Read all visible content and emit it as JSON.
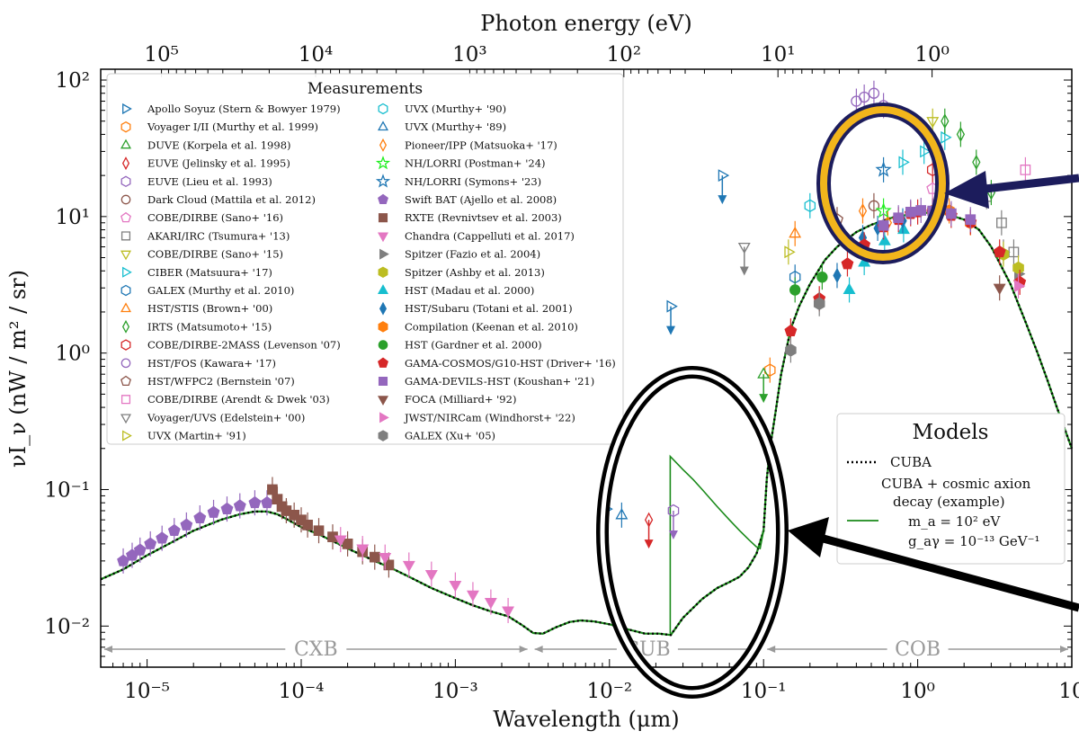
{
  "chart_data": {
    "type": "scatter",
    "xlabel": "Wavelength (μm)",
    "x2label": "Photon energy (eV)",
    "ylabel": "νI_ν (nW / m² / sr)",
    "xscale": "log",
    "yscale": "log",
    "xlim": [
      5e-06,
      10
    ],
    "ylim": [
      0.005,
      120
    ],
    "xticks": [
      {
        "value": 1e-05,
        "label": "10⁻⁵"
      },
      {
        "value": 0.0001,
        "label": "10⁻⁴"
      },
      {
        "value": 0.001,
        "label": "10⁻³"
      },
      {
        "value": 0.01,
        "label": "10⁻²"
      },
      {
        "value": 0.1,
        "label": "10⁻¹"
      },
      {
        "value": 1,
        "label": "10⁰"
      },
      {
        "value": 10,
        "label": "10"
      }
    ],
    "yticks": [
      {
        "value": 0.01,
        "label": "10⁻²"
      },
      {
        "value": 0.1,
        "label": "10⁻¹"
      },
      {
        "value": 1,
        "label": "10⁰"
      },
      {
        "value": 10,
        "label": "10¹"
      },
      {
        "value": 100,
        "label": "10²"
      }
    ],
    "x2ticks": [
      {
        "value": 100000,
        "label": "10⁵"
      },
      {
        "value": 10000,
        "label": "10⁴"
      },
      {
        "value": 1000,
        "label": "10³"
      },
      {
        "value": 100,
        "label": "10²"
      },
      {
        "value": 10,
        "label": "10¹"
      },
      {
        "value": 1,
        "label": "10⁰"
      }
    ],
    "regions": [
      {
        "label": "CXB",
        "from": 5e-06,
        "to": 0.0031
      },
      {
        "label": "CUB",
        "from": 0.0031,
        "to": 0.1
      },
      {
        "label": "COB",
        "from": 0.1,
        "to": 10
      }
    ],
    "measurements_title": "Measurements",
    "measurements": [
      {
        "label": "Apollo Soyuz (Stern & Bowyer 1979)",
        "marker": "tri-right-open",
        "color": "#1f77b4",
        "points": [
          {
            "x": 0.0095,
            "y": 0.072
          },
          {
            "x": 0.054,
            "y": 20,
            "limit": "upper"
          },
          {
            "x": 0.025,
            "y": 2.2,
            "limit": "upper"
          }
        ]
      },
      {
        "label": "Voyager I/II (Murthy et al. 1999)",
        "marker": "hex-open",
        "color": "#ff7f0e",
        "points": [
          {
            "x": 0.11,
            "y": 0.75
          }
        ]
      },
      {
        "label": "DUVE (Korpela et al. 1998)",
        "marker": "tri-up-open",
        "color": "#2ca02c",
        "points": [
          {
            "x": 0.1,
            "y": 0.7,
            "limit": "upper"
          }
        ]
      },
      {
        "label": "EUVE (Jelinsky et al. 1995)",
        "marker": "diamond-open",
        "color": "#d62728",
        "points": [
          {
            "x": 0.018,
            "y": 0.06,
            "limit": "upper"
          }
        ]
      },
      {
        "label": "EUVE (Lieu et al. 1993)",
        "marker": "hex-open",
        "color": "#9467bd",
        "points": [
          {
            "x": 0.026,
            "y": 0.07,
            "limit": "upper"
          }
        ]
      },
      {
        "label": "Dark Cloud (Mattila et al. 2012)",
        "marker": "circle-open",
        "color": "#8c564b",
        "points": [
          {
            "x": 0.52,
            "y": 12
          }
        ]
      },
      {
        "label": "COBE/DIRBE (Sano+ '16)",
        "marker": "pent-open",
        "color": "#e377c2",
        "points": [
          {
            "x": 1.25,
            "y": 16
          }
        ]
      },
      {
        "label": "AKARI/IRC (Tsumura+ '13)",
        "marker": "square-open",
        "color": "#7f7f7f",
        "points": [
          {
            "x": 2.8,
            "y": 14
          },
          {
            "x": 3.5,
            "y": 9
          },
          {
            "x": 4.2,
            "y": 5.5
          }
        ]
      },
      {
        "label": "COBE/DIRBE (Sano+ '15)",
        "marker": "tri-down-open",
        "color": "#bcbd22",
        "points": [
          {
            "x": 1.25,
            "y": 50
          }
        ]
      },
      {
        "label": "CIBER (Matsuura+ '17)",
        "marker": "tri-right-open",
        "color": "#17becf",
        "points": [
          {
            "x": 0.8,
            "y": 25
          },
          {
            "x": 1.1,
            "y": 30
          },
          {
            "x": 1.5,
            "y": 38
          }
        ]
      },
      {
        "label": "GALEX (Murthy et al. 2010)",
        "marker": "hex-open",
        "color": "#1f77b4",
        "points": [
          {
            "x": 0.16,
            "y": 3.6
          }
        ]
      },
      {
        "label": "HST/STIS (Brown+ '00)",
        "marker": "tri-up-open",
        "color": "#ff7f0e",
        "points": [
          {
            "x": 0.16,
            "y": 7.5
          }
        ]
      },
      {
        "label": "IRTS (Matsumoto+ '15)",
        "marker": "diamond-open",
        "color": "#2ca02c",
        "points": [
          {
            "x": 1.5,
            "y": 50
          },
          {
            "x": 1.9,
            "y": 40
          },
          {
            "x": 2.4,
            "y": 25
          },
          {
            "x": 3.0,
            "y": 15
          }
        ]
      },
      {
        "label": "COBE/DIRBE-2MASS (Levenson '07)",
        "marker": "hex-open",
        "color": "#d62728",
        "points": [
          {
            "x": 1.25,
            "y": 22
          }
        ]
      },
      {
        "label": "HST/FOS (Kawara+ '17)",
        "marker": "circle-open",
        "color": "#9467bd",
        "points": [
          {
            "x": 0.4,
            "y": 70
          },
          {
            "x": 0.45,
            "y": 75
          },
          {
            "x": 0.52,
            "y": 80
          },
          {
            "x": 0.6,
            "y": 65
          }
        ]
      },
      {
        "label": "HST/WFPC2 (Bernstein '07)",
        "marker": "pent-open",
        "color": "#8c564b",
        "points": [
          {
            "x": 0.3,
            "y": 9.5
          }
        ]
      },
      {
        "label": "COBE/DIRBE (Arendt & Dwek '03)",
        "marker": "square-open",
        "color": "#e377c2",
        "points": [
          {
            "x": 5.0,
            "y": 22
          }
        ]
      },
      {
        "label": "Voyager/UVS (Edelstein+ '00)",
        "marker": "tri-down-open",
        "color": "#7f7f7f",
        "points": [
          {
            "x": 0.075,
            "y": 6,
            "limit": "upper"
          }
        ]
      },
      {
        "label": "UVX (Martin+ '91)",
        "marker": "tri-right-open",
        "color": "#bcbd22",
        "points": [
          {
            "x": 0.145,
            "y": 5.5
          }
        ]
      },
      {
        "label": "UVX (Murthy+ '90)",
        "marker": "hex-open",
        "color": "#17becf",
        "points": [
          {
            "x": 0.2,
            "y": 12
          }
        ]
      },
      {
        "label": "UVX (Murthy+ '89)",
        "marker": "tri-up-open",
        "color": "#1f77b4",
        "points": [
          {
            "x": 0.012,
            "y": 0.065
          }
        ]
      },
      {
        "label": "Pioneer/IPP (Matsuoka+ '17)",
        "marker": "diamond-open",
        "color": "#ff7f0e",
        "points": [
          {
            "x": 0.44,
            "y": 11
          },
          {
            "x": 0.64,
            "y": 9
          }
        ]
      },
      {
        "label": "NH/LORRI (Postman+ '24)",
        "marker": "star-open",
        "color": "#22ee22",
        "points": [
          {
            "x": 0.6,
            "y": 11
          }
        ]
      },
      {
        "label": "NH/LORRI (Symons+ '23)",
        "marker": "star-open",
        "color": "#1f77b4",
        "points": [
          {
            "x": 0.6,
            "y": 22
          }
        ]
      },
      {
        "label": "Swift BAT (Ajello et al. 2008)",
        "marker": "pent-filled",
        "color": "#9467bd",
        "points": [
          {
            "x": 7e-06,
            "y": 0.03
          },
          {
            "x": 8e-06,
            "y": 0.033
          },
          {
            "x": 9e-06,
            "y": 0.036
          },
          {
            "x": 1.05e-05,
            "y": 0.04
          },
          {
            "x": 1.25e-05,
            "y": 0.044
          },
          {
            "x": 1.5e-05,
            "y": 0.05
          },
          {
            "x": 1.8e-05,
            "y": 0.055
          },
          {
            "x": 2.2e-05,
            "y": 0.062
          },
          {
            "x": 2.7e-05,
            "y": 0.068
          },
          {
            "x": 3.3e-05,
            "y": 0.072
          },
          {
            "x": 4e-05,
            "y": 0.076
          },
          {
            "x": 5e-05,
            "y": 0.08
          },
          {
            "x": 6e-05,
            "y": 0.08
          }
        ]
      },
      {
        "label": "RXTE (Revnivtsev et al. 2003)",
        "marker": "square-filled",
        "color": "#8c564b",
        "points": [
          {
            "x": 6.5e-05,
            "y": 0.1
          },
          {
            "x": 7e-05,
            "y": 0.085
          },
          {
            "x": 7.5e-05,
            "y": 0.075
          },
          {
            "x": 8e-05,
            "y": 0.07
          },
          {
            "x": 9e-05,
            "y": 0.065
          },
          {
            "x": 0.0001,
            "y": 0.06
          },
          {
            "x": 0.00011,
            "y": 0.055
          },
          {
            "x": 0.00013,
            "y": 0.05
          },
          {
            "x": 0.00016,
            "y": 0.045
          },
          {
            "x": 0.0002,
            "y": 0.04
          },
          {
            "x": 0.00025,
            "y": 0.035
          },
          {
            "x": 0.0003,
            "y": 0.032
          },
          {
            "x": 0.00037,
            "y": 0.028
          }
        ]
      },
      {
        "label": "Chandra (Cappelluti et al. 2017)",
        "marker": "tri-down-filled",
        "color": "#e377c2",
        "points": [
          {
            "x": 0.00018,
            "y": 0.043
          },
          {
            "x": 0.00025,
            "y": 0.037
          },
          {
            "x": 0.00035,
            "y": 0.032
          },
          {
            "x": 0.0005,
            "y": 0.028
          },
          {
            "x": 0.0007,
            "y": 0.024
          },
          {
            "x": 0.001,
            "y": 0.02
          },
          {
            "x": 0.0013,
            "y": 0.017
          },
          {
            "x": 0.0017,
            "y": 0.015
          },
          {
            "x": 0.0022,
            "y": 0.013
          }
        ]
      },
      {
        "label": "Spitzer (Fazio et al. 2004)",
        "marker": "tri-right-filled",
        "color": "#7f7f7f",
        "points": [
          {
            "x": 3.6,
            "y": 5.5
          },
          {
            "x": 4.5,
            "y": 3.8
          }
        ]
      },
      {
        "label": "Spitzer (Ashby et al. 2013)",
        "marker": "hex-filled",
        "color": "#bcbd22",
        "points": [
          {
            "x": 3.6,
            "y": 5.3
          },
          {
            "x": 4.5,
            "y": 4.2
          }
        ]
      },
      {
        "label": "HST (Madau et al. 2000)",
        "marker": "tri-up-filled",
        "color": "#17becf",
        "points": [
          {
            "x": 0.36,
            "y": 2.9
          },
          {
            "x": 0.45,
            "y": 4.6
          },
          {
            "x": 0.61,
            "y": 6.6
          },
          {
            "x": 0.81,
            "y": 8.0
          }
        ]
      },
      {
        "label": "HST/Subaru (Totani et al. 2001)",
        "marker": "diamond-filled",
        "color": "#1f77b4",
        "points": [
          {
            "x": 0.3,
            "y": 3.7
          },
          {
            "x": 0.44,
            "y": 7.0
          },
          {
            "x": 0.55,
            "y": 8.2
          },
          {
            "x": 0.8,
            "y": 9.3
          }
        ]
      },
      {
        "label": "Compilation (Keenan et al. 2010)",
        "marker": "hex-filled",
        "color": "#ff7f0e",
        "points": [
          {
            "x": 1.25,
            "y": 11
          },
          {
            "x": 1.6,
            "y": 11
          },
          {
            "x": 2.2,
            "y": 9
          }
        ]
      },
      {
        "label": "HST (Gardner et al. 2000)",
        "marker": "circle-filled",
        "color": "#2ca02c",
        "points": [
          {
            "x": 0.16,
            "y": 2.9
          },
          {
            "x": 0.24,
            "y": 3.6
          }
        ]
      },
      {
        "label": "GAMA-COSMOS/G10-HST (Driver+ '16)",
        "marker": "pent-filled",
        "color": "#d62728",
        "points": [
          {
            "x": 0.15,
            "y": 1.45
          },
          {
            "x": 0.23,
            "y": 2.5
          },
          {
            "x": 0.35,
            "y": 4.5
          },
          {
            "x": 0.45,
            "y": 6.2
          },
          {
            "x": 0.6,
            "y": 8.4
          },
          {
            "x": 0.75,
            "y": 9.5
          },
          {
            "x": 0.9,
            "y": 10.5
          },
          {
            "x": 1.0,
            "y": 10.8
          },
          {
            "x": 1.25,
            "y": 10.8
          },
          {
            "x": 1.65,
            "y": 10.2
          },
          {
            "x": 2.2,
            "y": 9.1
          },
          {
            "x": 3.4,
            "y": 5.5
          },
          {
            "x": 4.6,
            "y": 3.3
          }
        ]
      },
      {
        "label": "GAMA-DEVILS-HST (Koushan+ '21)",
        "marker": "square-filled",
        "color": "#9467bd",
        "points": [
          {
            "x": 0.6,
            "y": 8.6
          },
          {
            "x": 0.75,
            "y": 9.8
          },
          {
            "x": 0.9,
            "y": 10.8
          },
          {
            "x": 1.05,
            "y": 11.1
          },
          {
            "x": 1.25,
            "y": 11.0
          },
          {
            "x": 1.65,
            "y": 10.5
          },
          {
            "x": 2.2,
            "y": 9.5
          }
        ]
      },
      {
        "label": "FOCA (Milliard+ '92)",
        "marker": "tri-down-filled",
        "color": "#8c564b",
        "points": [
          {
            "x": 3.4,
            "y": 3.0
          }
        ]
      },
      {
        "label": "JWST/NIRCam (Windhorst+ '22)",
        "marker": "tri-right-filled",
        "color": "#e377c2",
        "points": [
          {
            "x": 4.5,
            "y": 3.1
          }
        ]
      },
      {
        "label": "GALEX (Xu+ '05)",
        "marker": "hex-filled",
        "color": "#7f7f7f",
        "points": [
          {
            "x": 0.15,
            "y": 1.05
          },
          {
            "x": 0.23,
            "y": 2.3
          }
        ]
      }
    ],
    "models_title": "Models",
    "models": [
      {
        "name": "CUBA",
        "style": "dotted",
        "color": "#000000",
        "label_lines": [
          "CUBA"
        ]
      },
      {
        "name": "CUBA + cosmic axion decay (example)",
        "style": "solid",
        "color": "#1a8a1a",
        "label_lines": [
          "CUBA + cosmic axion",
          "decay (example)",
          "m_a = 10² eV",
          "g_aγ = 10⁻¹³ GeV⁻¹"
        ]
      }
    ],
    "cuba_curve": {
      "x": [
        5e-06,
        7e-06,
        1e-05,
        1.5e-05,
        2e-05,
        3e-05,
        4e-05,
        5e-05,
        6e-05,
        7e-05,
        8e-05,
        0.0001,
        0.00013,
        0.00016,
        0.0002,
        0.00025,
        0.0003,
        0.0004,
        0.0005,
        0.0007,
        0.001,
        0.0013,
        0.0017,
        0.0022,
        0.0027,
        0.0032,
        0.0037,
        0.0045,
        0.0055,
        0.0065,
        0.008,
        0.01,
        0.013,
        0.017,
        0.021,
        0.025,
        0.03,
        0.04,
        0.05,
        0.06,
        0.07,
        0.08,
        0.09,
        0.1,
        0.105,
        0.11,
        0.12,
        0.13,
        0.15,
        0.17,
        0.2,
        0.25,
        0.3,
        0.4,
        0.5,
        0.7,
        1.0,
        1.3,
        1.6,
        2.0,
        2.5,
        3.0,
        4.0,
        5.0,
        6.0,
        7.0,
        8.0,
        10.0
      ],
      "y": [
        0.022,
        0.026,
        0.033,
        0.042,
        0.05,
        0.06,
        0.066,
        0.069,
        0.069,
        0.066,
        0.061,
        0.053,
        0.047,
        0.042,
        0.037,
        0.033,
        0.03,
        0.026,
        0.023,
        0.019,
        0.016,
        0.0142,
        0.0128,
        0.0118,
        0.0102,
        0.0089,
        0.0088,
        0.0098,
        0.0107,
        0.011,
        0.0108,
        0.0103,
        0.0095,
        0.0088,
        0.0088,
        0.0086,
        0.0115,
        0.0158,
        0.019,
        0.021,
        0.023,
        0.027,
        0.034,
        0.05,
        0.12,
        0.2,
        0.38,
        0.7,
        1.5,
        2.2,
        3.2,
        4.8,
        6.0,
        7.7,
        8.7,
        9.9,
        10.6,
        10.7,
        10.3,
        9.5,
        8.0,
        6.0,
        3.2,
        1.7,
        1.0,
        0.62,
        0.4,
        0.2
      ]
    },
    "axion_curve": {
      "x": [
        0.0248,
        0.0248,
        0.03,
        0.035,
        0.04,
        0.05,
        0.06,
        0.07,
        0.08,
        0.09,
        0.095,
        0.1
      ],
      "y": [
        0.0088,
        0.175,
        0.14,
        0.118,
        0.1,
        0.075,
        0.06,
        0.05,
        0.043,
        0.038,
        0.037,
        0.05
      ]
    }
  }
}
